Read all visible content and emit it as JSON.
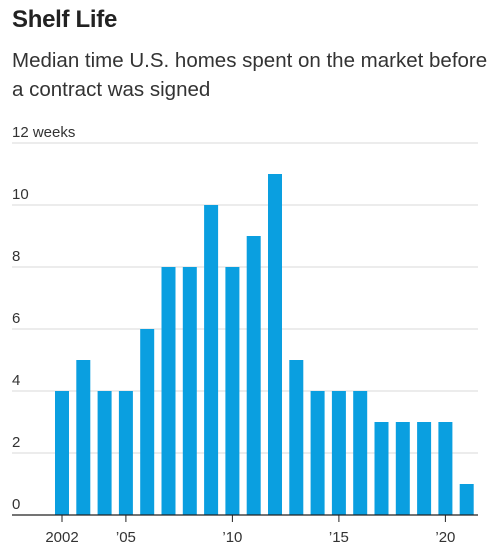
{
  "title": "Shelf Life",
  "subtitle": "Median time U.S. homes spent on the market before a contract was signed",
  "chart_data": {
    "type": "bar",
    "title": "Shelf Life",
    "subtitle": "Median time U.S. homes spent on the market before a contract was signed",
    "ylabel": "",
    "xlabel": "",
    "y_unit_label": "weeks",
    "ylim": [
      0,
      12
    ],
    "y_ticks": [
      0,
      2,
      4,
      6,
      8,
      10,
      12
    ],
    "y_tick_labels": [
      "0",
      "2",
      "4",
      "6",
      "8",
      "10",
      "12 weeks"
    ],
    "x_tick_labels": [
      {
        "year": 2002,
        "label": "2002"
      },
      {
        "year": 2005,
        "label": "’05"
      },
      {
        "year": 2010,
        "label": "’10"
      },
      {
        "year": 2015,
        "label": "’15"
      },
      {
        "year": 2020,
        "label": "’20"
      }
    ],
    "categories": [
      2002,
      2003,
      2004,
      2005,
      2006,
      2007,
      2008,
      2009,
      2010,
      2011,
      2012,
      2013,
      2014,
      2015,
      2016,
      2017,
      2018,
      2019,
      2020,
      2021
    ],
    "values": [
      4,
      5,
      4,
      4,
      6,
      8,
      8,
      10,
      8,
      9,
      11,
      5,
      4,
      4,
      4,
      3,
      3,
      3,
      3,
      1
    ],
    "grid": true,
    "bar_color": "#0a9fe0"
  }
}
